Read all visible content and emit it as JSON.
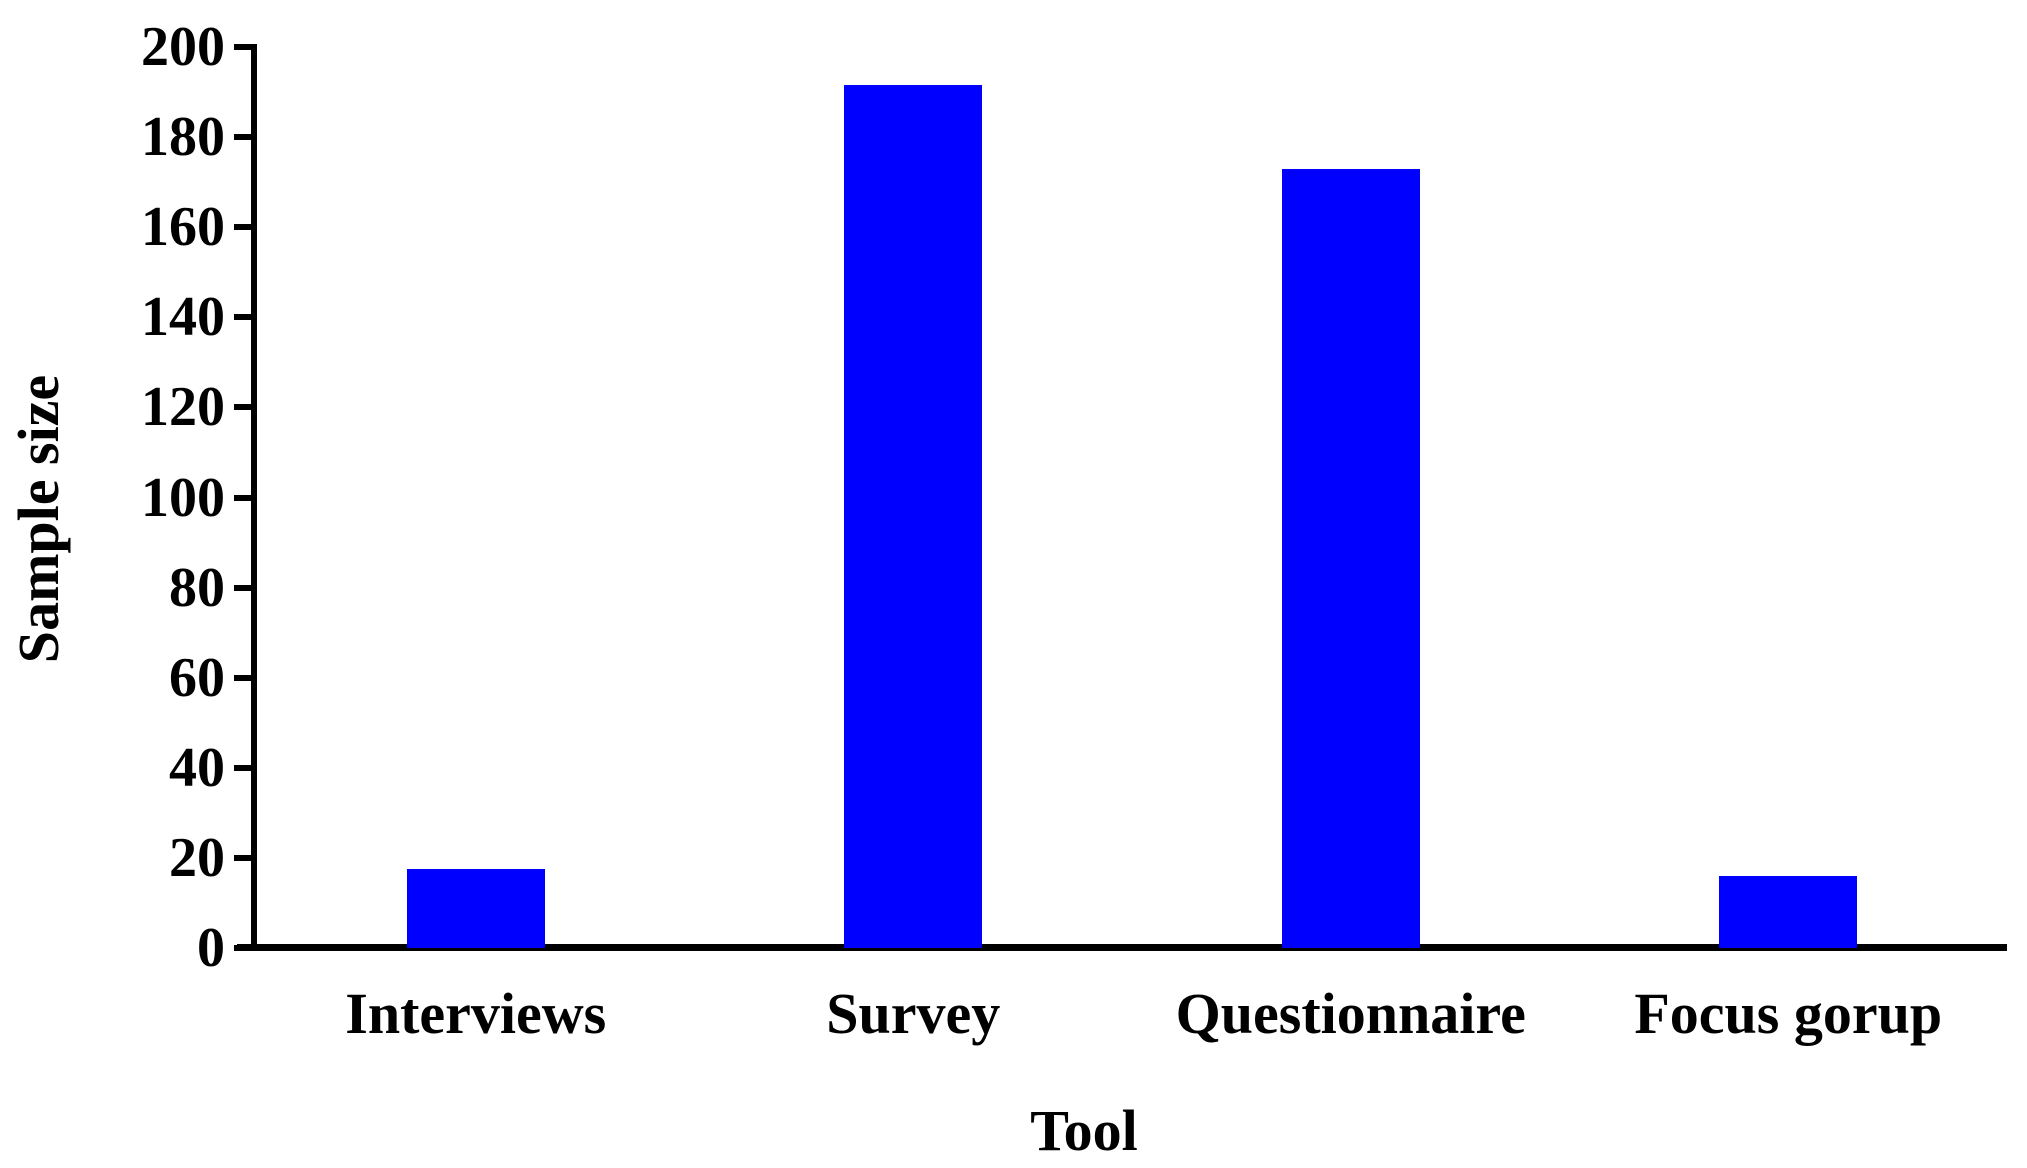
{
  "chart_data": {
    "type": "bar",
    "title": "",
    "categories": [
      "Interviews",
      "Survey",
      "Questionnaire",
      "Focus gorup"
    ],
    "values": [
      17.5,
      191.5,
      173,
      16
    ],
    "xlabel": "Tool",
    "ylabel": "Sample size",
    "ylim": [
      0,
      200
    ],
    "yticks": [
      0,
      20,
      40,
      60,
      80,
      100,
      120,
      140,
      160,
      180,
      200
    ],
    "grid": false,
    "legend": false,
    "bar_color": "#0000FE",
    "axis_color": "#000000",
    "text_color": "#000000",
    "background_color": "#FFFFFF"
  }
}
